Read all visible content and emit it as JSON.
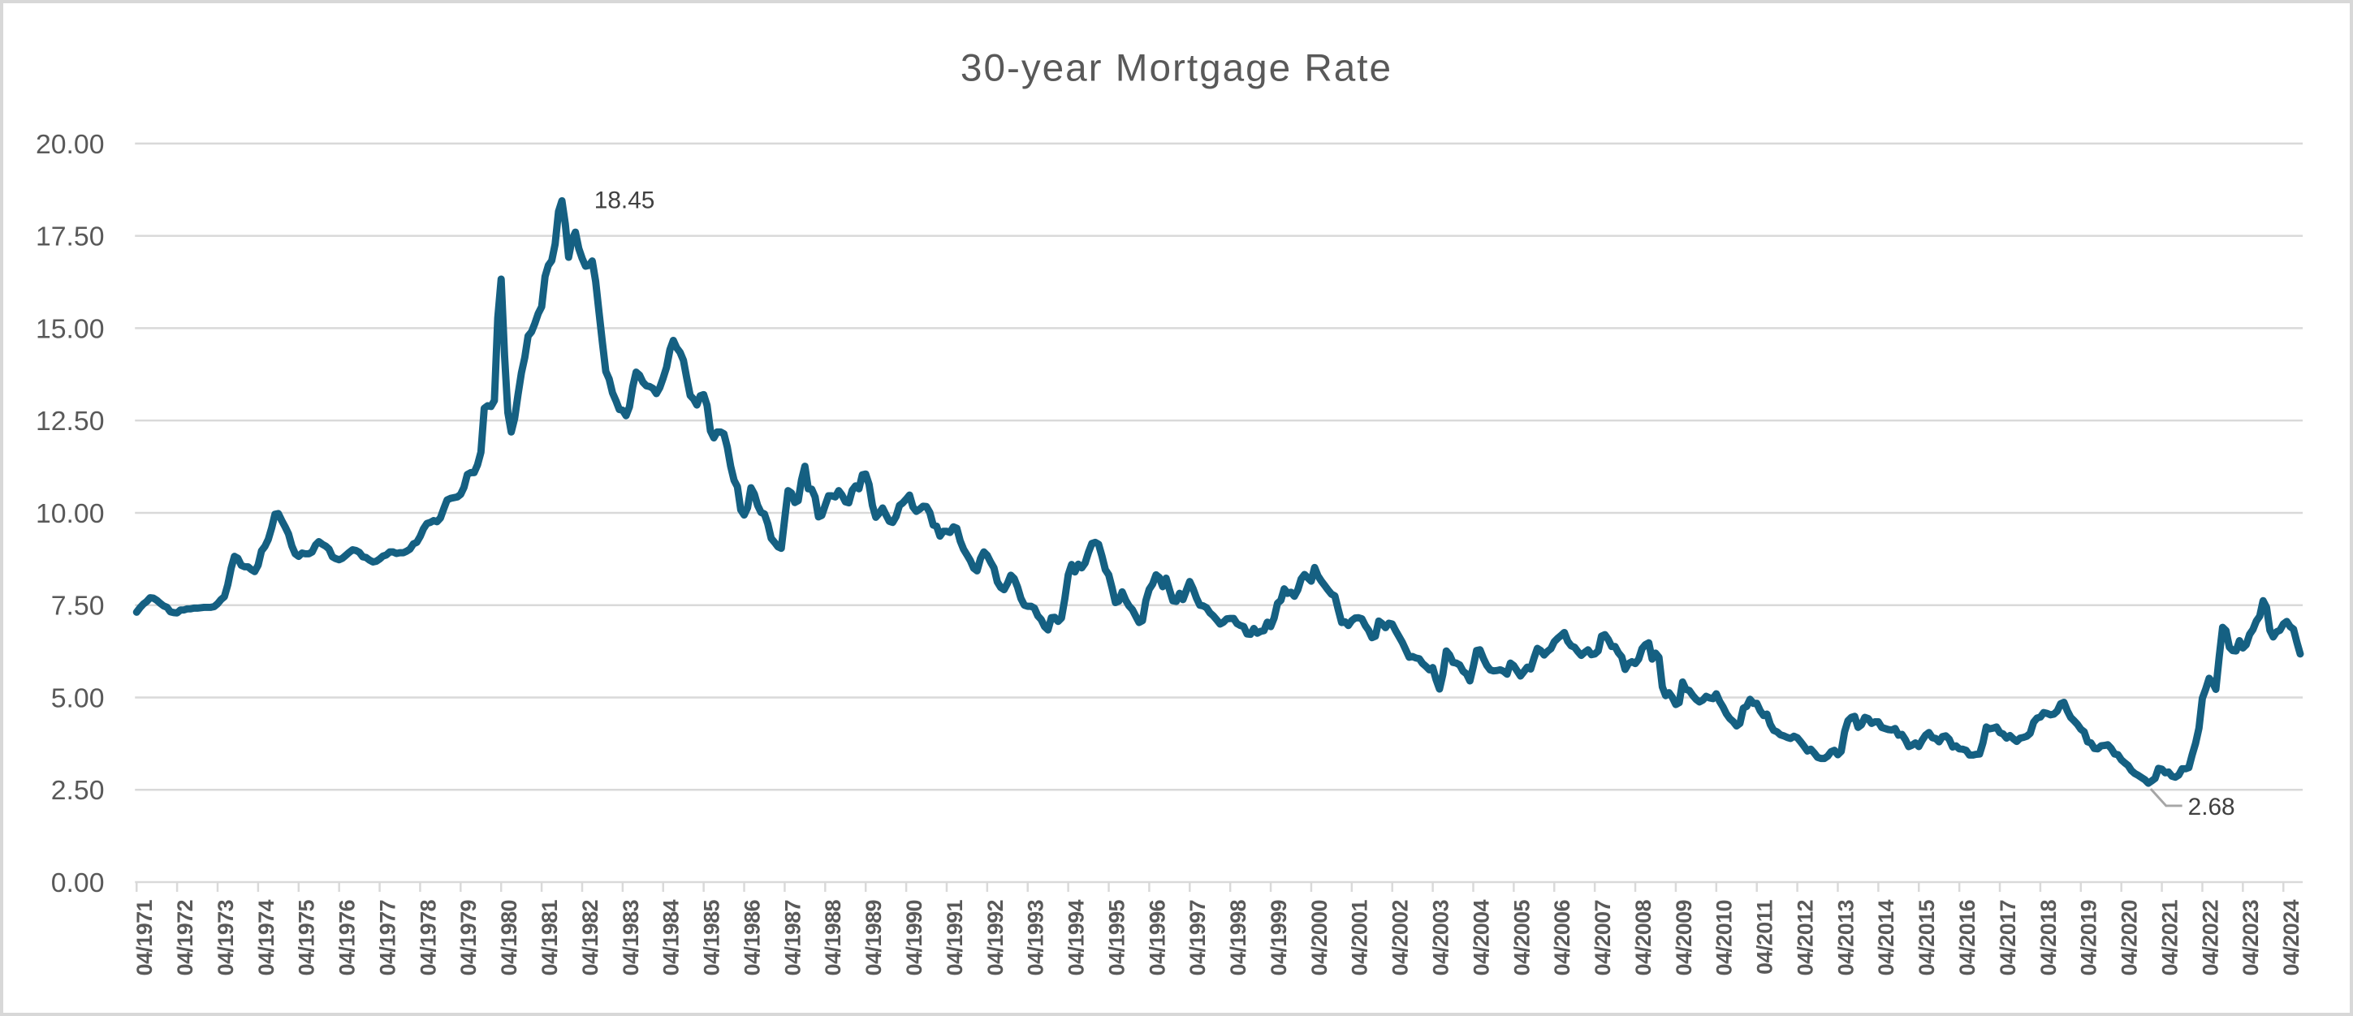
{
  "chart_data": {
    "type": "line",
    "title": "30-year Mortgage Rate",
    "xlabel": "",
    "ylabel": "",
    "ylim": [
      0,
      20
    ],
    "grid": true,
    "legend_position": "none",
    "line_color": "#156082",
    "grid_color": "#D9D9D9",
    "axis_label_color": "#595959",
    "annotation_color": "#404040",
    "leader_line_color": "#A6A6A6",
    "y_tick_labels": [
      "0.00",
      "2.50",
      "5.00",
      "7.50",
      "10.00",
      "12.50",
      "15.00",
      "17.50",
      "20.00"
    ],
    "x_tick_labels": [
      "04/1971",
      "04/1972",
      "04/1973",
      "04/1974",
      "04/1975",
      "04/1976",
      "04/1977",
      "04/1978",
      "04/1979",
      "04/1980",
      "04/1981",
      "04/1982",
      "04/1983",
      "04/1984",
      "04/1985",
      "04/1986",
      "04/1987",
      "04/1988",
      "04/1989",
      "04/1990",
      "04/1991",
      "04/1992",
      "04/1993",
      "04/1994",
      "04/1995",
      "04/1996",
      "04/1997",
      "04/1998",
      "04/1999",
      "04/2000",
      "04/2001",
      "04/2002",
      "04/2003",
      "04/2004",
      "04/2005",
      "04/2006",
      "04/2007",
      "04/2008",
      "04/2009",
      "04/2010",
      "04/2011",
      "04/2012",
      "04/2013",
      "04/2014",
      "04/2015",
      "04/2016",
      "04/2017",
      "04/2018",
      "04/2019",
      "04/2020",
      "04/2021",
      "04/2022",
      "04/2023",
      "04/2024"
    ],
    "annotations": [
      {
        "type": "max",
        "label": "18.45",
        "month": "10/1981"
      },
      {
        "type": "min",
        "label": "2.68",
        "month": "12/2020"
      }
    ],
    "series": [
      {
        "name": "30-year Mortgage Rate",
        "frequency": "monthly",
        "start_month": "04/1971",
        "end_month": "09/2024",
        "color": "#156082",
        "values": [
          7.31,
          7.43,
          7.53,
          7.6,
          7.7,
          7.69,
          7.63,
          7.55,
          7.48,
          7.44,
          7.32,
          7.3,
          7.29,
          7.37,
          7.37,
          7.4,
          7.4,
          7.42,
          7.42,
          7.43,
          7.44,
          7.44,
          7.44,
          7.46,
          7.54,
          7.65,
          7.73,
          8.05,
          8.5,
          8.82,
          8.77,
          8.58,
          8.54,
          8.54,
          8.46,
          8.41,
          8.58,
          8.97,
          9.09,
          9.28,
          9.59,
          9.96,
          9.98,
          9.79,
          9.62,
          9.43,
          9.1,
          8.89,
          8.82,
          8.91,
          8.89,
          8.89,
          8.94,
          9.13,
          9.22,
          9.15,
          9.1,
          9.02,
          8.81,
          8.76,
          8.73,
          8.77,
          8.85,
          8.93,
          9.0,
          8.98,
          8.93,
          8.81,
          8.79,
          8.72,
          8.67,
          8.69,
          8.75,
          8.83,
          8.86,
          8.94,
          8.94,
          8.9,
          8.92,
          8.92,
          8.96,
          9.02,
          9.16,
          9.2,
          9.36,
          9.57,
          9.71,
          9.74,
          9.79,
          9.76,
          9.86,
          10.11,
          10.35,
          10.39,
          10.41,
          10.43,
          10.5,
          10.69,
          11.04,
          11.09,
          11.09,
          11.3,
          11.64,
          12.83,
          12.9,
          12.88,
          13.04,
          15.28,
          16.33,
          14.26,
          12.71,
          12.19,
          12.56,
          13.2,
          13.79,
          14.21,
          14.79,
          14.9,
          15.13,
          15.4,
          15.58,
          16.4,
          16.7,
          16.83,
          17.28,
          18.16,
          18.45,
          17.82,
          16.92,
          17.4,
          17.6,
          17.16,
          16.89,
          16.68,
          16.7,
          16.82,
          16.27,
          15.43,
          14.61,
          13.83,
          13.62,
          13.25,
          13.04,
          12.8,
          12.78,
          12.63,
          12.87,
          13.42,
          13.81,
          13.73,
          13.54,
          13.44,
          13.42,
          13.37,
          13.23,
          13.39,
          13.65,
          13.94,
          14.42,
          14.67,
          14.47,
          14.35,
          14.13,
          13.64,
          13.18,
          13.08,
          12.92,
          13.17,
          13.2,
          12.91,
          12.22,
          12.03,
          12.19,
          12.19,
          12.14,
          11.78,
          11.26,
          10.88,
          10.71,
          10.08,
          9.94,
          10.14,
          10.68,
          10.51,
          10.2,
          10.01,
          9.97,
          9.7,
          9.31,
          9.2,
          9.08,
          9.04,
          9.83,
          10.6,
          10.54,
          10.28,
          10.33,
          10.89,
          11.26,
          10.65,
          10.64,
          10.43,
          9.89,
          9.93,
          10.2,
          10.46,
          10.46,
          10.43,
          10.6,
          10.48,
          10.3,
          10.27,
          10.61,
          10.73,
          10.65,
          11.03,
          11.05,
          10.77,
          10.2,
          9.88,
          9.99,
          10.13,
          9.95,
          9.77,
          9.74,
          9.9,
          10.2,
          10.27,
          10.37,
          10.48,
          10.16,
          10.04,
          10.1,
          10.18,
          10.17,
          10.01,
          9.67,
          9.64,
          9.37,
          9.5,
          9.5,
          9.47,
          9.62,
          9.58,
          9.24,
          9.01,
          8.86,
          8.71,
          8.5,
          8.43,
          8.76,
          8.94,
          8.85,
          8.67,
          8.51,
          8.13,
          7.98,
          7.92,
          8.09,
          8.31,
          8.22,
          7.99,
          7.68,
          7.5,
          7.47,
          7.47,
          7.42,
          7.21,
          7.11,
          6.92,
          6.83,
          7.16,
          7.17,
          7.06,
          7.15,
          7.68,
          8.32,
          8.6,
          8.4,
          8.61,
          8.51,
          8.64,
          8.93,
          9.17,
          9.2,
          9.15,
          8.83,
          8.46,
          8.32,
          7.96,
          7.57,
          7.61,
          7.86,
          7.64,
          7.48,
          7.38,
          7.2,
          7.03,
          7.08,
          7.62,
          7.93,
          8.07,
          8.32,
          8.25,
          8.0,
          8.23,
          7.92,
          7.62,
          7.6,
          7.82,
          7.65,
          7.9,
          8.14,
          7.94,
          7.69,
          7.5,
          7.48,
          7.43,
          7.29,
          7.21,
          7.1,
          6.99,
          7.04,
          7.13,
          7.14,
          7.14,
          7.0,
          6.95,
          6.92,
          6.72,
          6.71,
          6.87,
          6.74,
          6.79,
          6.81,
          7.04,
          6.92,
          7.15,
          7.55,
          7.63,
          7.94,
          7.82,
          7.85,
          7.74,
          7.91,
          8.21,
          8.33,
          8.24,
          8.15,
          8.52,
          8.29,
          8.15,
          8.03,
          7.91,
          7.8,
          7.75,
          7.38,
          7.03,
          7.05,
          6.95,
          7.08,
          7.15,
          7.16,
          7.13,
          6.95,
          6.82,
          6.62,
          6.66,
          7.07,
          7.0,
          6.89,
          7.01,
          6.99,
          6.81,
          6.65,
          6.49,
          6.29,
          6.09,
          6.11,
          6.07,
          6.05,
          5.92,
          5.84,
          5.75,
          5.81,
          5.48,
          5.23,
          5.63,
          6.26,
          6.15,
          5.95,
          5.93,
          5.88,
          5.71,
          5.64,
          5.45,
          5.83,
          6.27,
          6.29,
          6.06,
          5.87,
          5.75,
          5.72,
          5.73,
          5.75,
          5.71,
          5.63,
          5.93,
          5.86,
          5.72,
          5.58,
          5.7,
          5.82,
          5.77,
          6.07,
          6.33,
          6.27,
          6.15,
          6.25,
          6.32,
          6.51,
          6.6,
          6.68,
          6.76,
          6.52,
          6.4,
          6.36,
          6.24,
          6.14,
          6.22,
          6.29,
          6.16,
          6.18,
          6.26,
          6.66,
          6.7,
          6.57,
          6.38,
          6.38,
          6.21,
          6.1,
          5.76,
          5.92,
          5.97,
          5.92,
          6.04,
          6.32,
          6.43,
          6.48,
          6.04,
          6.2,
          6.09,
          5.29,
          5.05,
          5.13,
          5.0,
          4.81,
          4.86,
          5.42,
          5.22,
          5.19,
          5.06,
          4.95,
          4.88,
          4.93,
          5.03,
          4.99,
          4.97,
          5.1,
          4.89,
          4.74,
          4.56,
          4.43,
          4.35,
          4.23,
          4.3,
          4.71,
          4.76,
          4.95,
          4.84,
          4.84,
          4.64,
          4.51,
          4.55,
          4.27,
          4.11,
          4.07,
          3.99,
          3.96,
          3.92,
          3.89,
          3.95,
          3.91,
          3.8,
          3.68,
          3.55,
          3.6,
          3.5,
          3.38,
          3.35,
          3.35,
          3.41,
          3.53,
          3.57,
          3.45,
          3.54,
          4.07,
          4.37,
          4.46,
          4.49,
          4.19,
          4.26,
          4.46,
          4.43,
          4.3,
          4.34,
          4.34,
          4.19,
          4.16,
          4.13,
          4.12,
          4.16,
          3.98,
          4.0,
          3.86,
          3.67,
          3.71,
          3.77,
          3.67,
          3.84,
          3.98,
          4.05,
          3.91,
          3.89,
          3.8,
          3.94,
          3.96,
          3.87,
          3.66,
          3.69,
          3.61,
          3.6,
          3.57,
          3.44,
          3.44,
          3.46,
          3.47,
          3.77,
          4.2,
          4.15,
          4.17,
          4.2,
          4.05,
          4.01,
          3.9,
          3.97,
          3.88,
          3.81,
          3.9,
          3.92,
          3.95,
          4.03,
          4.33,
          4.44,
          4.47,
          4.59,
          4.57,
          4.53,
          4.55,
          4.63,
          4.83,
          4.87,
          4.64,
          4.46,
          4.37,
          4.27,
          4.14,
          4.07,
          3.8,
          3.77,
          3.62,
          3.61,
          3.69,
          3.7,
          3.72,
          3.62,
          3.47,
          3.45,
          3.31,
          3.23,
          3.16,
          3.02,
          2.94,
          2.89,
          2.83,
          2.77,
          2.68,
          2.74,
          2.81,
          3.08,
          3.06,
          2.96,
          2.98,
          2.87,
          2.84,
          2.9,
          3.07,
          3.07,
          3.1,
          3.45,
          3.76,
          4.17,
          4.98,
          5.23,
          5.52,
          5.41,
          5.22,
          6.11,
          6.9,
          6.81,
          6.36,
          6.27,
          6.26,
          6.54,
          6.34,
          6.43,
          6.71,
          6.84,
          7.07,
          7.2,
          7.62,
          7.44,
          6.82,
          6.64,
          6.78,
          6.82,
          6.99,
          7.06,
          6.92,
          6.85,
          6.5,
          6.18
        ]
      }
    ]
  }
}
